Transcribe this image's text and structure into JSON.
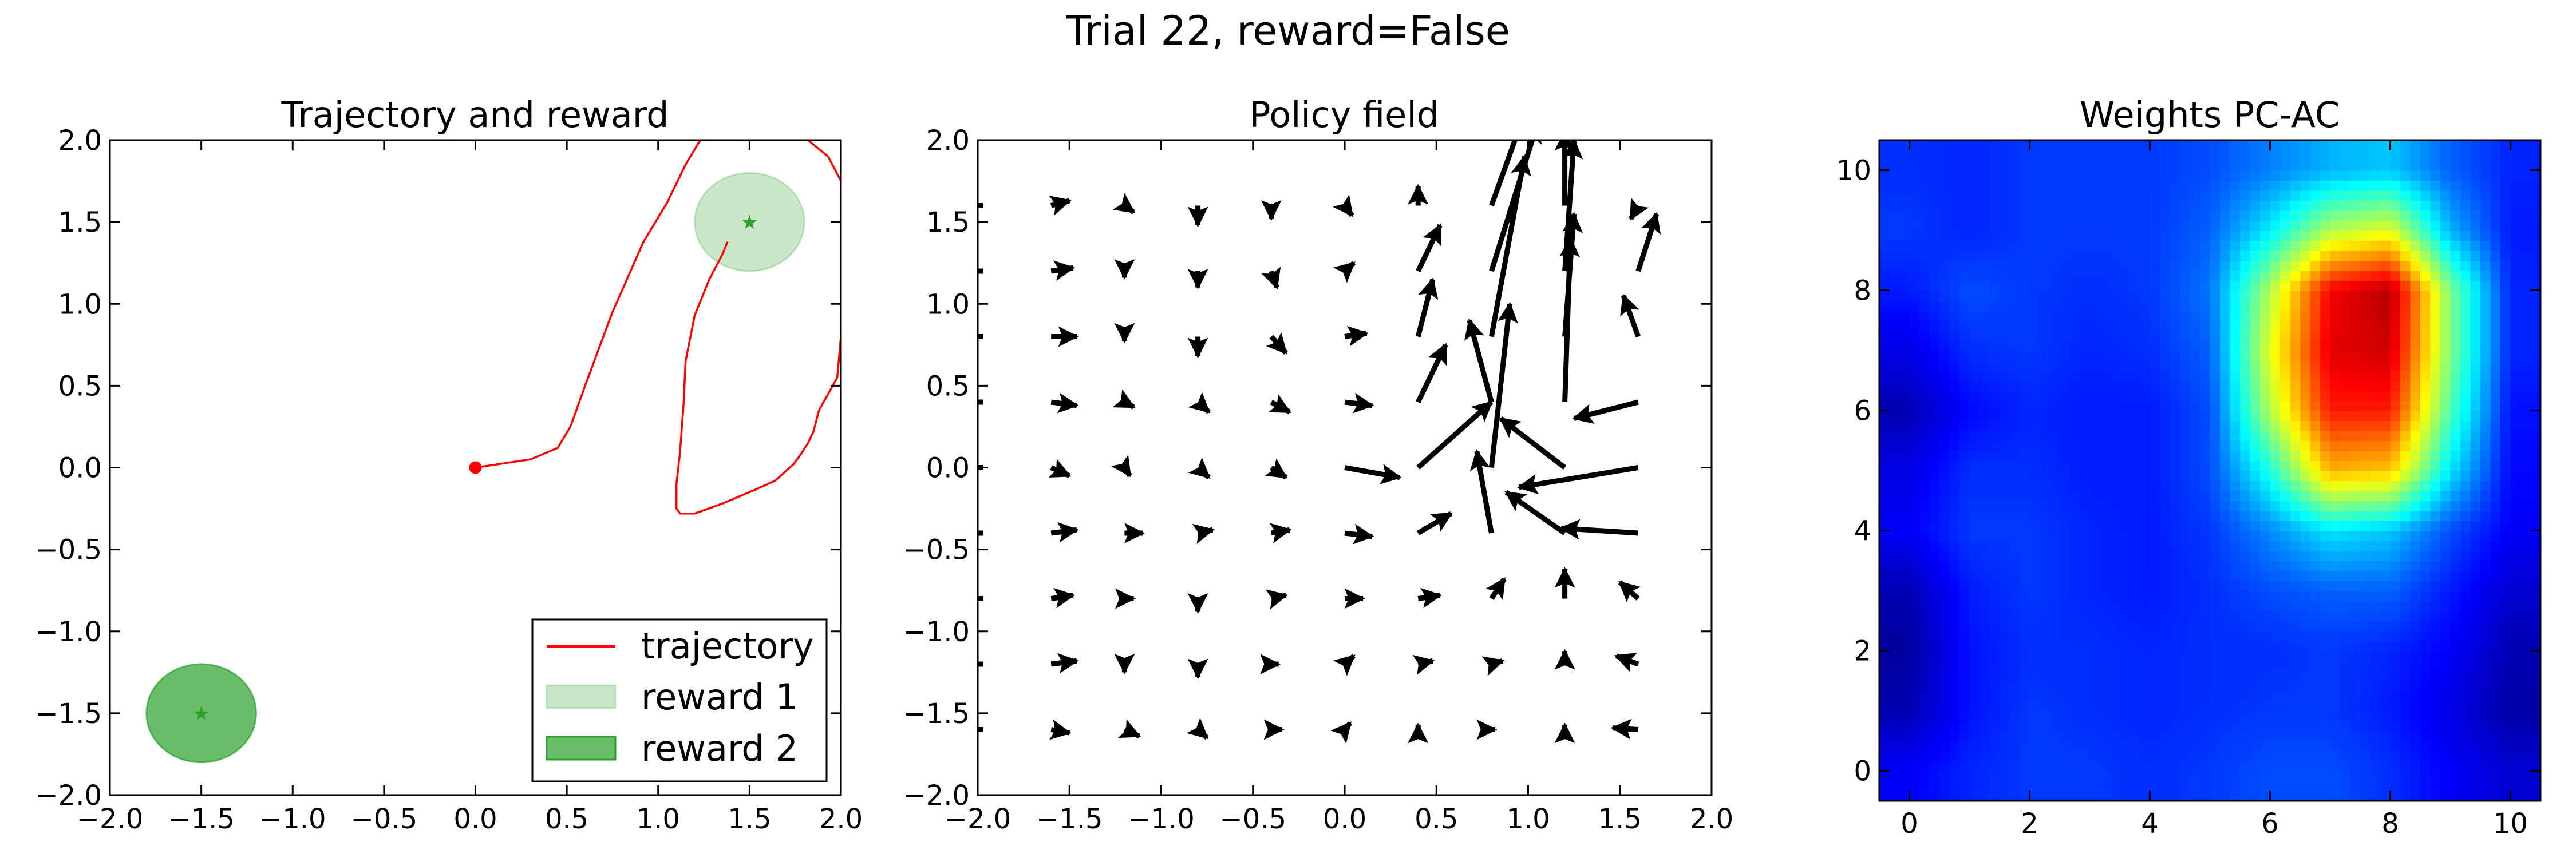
{
  "suptitle": "Trial 22, reward=False",
  "panels": {
    "trajectory": {
      "title": "Trajectory and reward",
      "xticks": [
        "−2.0",
        "−1.5",
        "−1.0",
        "−0.5",
        "0.0",
        "0.5",
        "1.0",
        "1.5",
        "2.0"
      ],
      "yticks": [
        "−2.0",
        "−1.5",
        "−1.0",
        "−0.5",
        "0.0",
        "0.5",
        "1.0",
        "1.5",
        "2.0"
      ],
      "legend": [
        "trajectory",
        "reward 1",
        "reward 2"
      ]
    },
    "policy": {
      "title": "Policy field",
      "xticks": [
        "−2.0",
        "−1.5",
        "−1.0",
        "−0.5",
        "0.0",
        "0.5",
        "1.0",
        "1.5",
        "2.0"
      ],
      "yticks": [
        "−2.0",
        "−1.5",
        "−1.0",
        "−0.5",
        "0.0",
        "0.5",
        "1.0",
        "1.5",
        "2.0"
      ]
    },
    "weights": {
      "title": "Weights PC-AC",
      "xticks": [
        "0",
        "2",
        "4",
        "6",
        "8",
        "10"
      ],
      "yticks": [
        "0",
        "2",
        "4",
        "6",
        "8",
        "10"
      ]
    }
  },
  "colors": {
    "trajectory": "#ff0000",
    "reward1": "#2ca02c",
    "reward2": "#2ca02c",
    "arrows": "#000000"
  },
  "chart_data": [
    {
      "type": "line",
      "title": "Trajectory and reward",
      "xlim": [
        -2,
        2
      ],
      "ylim": [
        -2,
        2
      ],
      "series": [
        {
          "name": "trajectory",
          "x": [
            0.0,
            0.3,
            0.45,
            0.52,
            0.6,
            0.75,
            0.92,
            1.05,
            1.15,
            1.23,
            1.3,
            1.45,
            1.65,
            1.82,
            1.93,
            2.0,
            2.0,
            1.98,
            1.93,
            1.88,
            1.85,
            1.82,
            1.78,
            1.74,
            1.64,
            1.52,
            1.35,
            1.2,
            1.12,
            1.1,
            1.1,
            1.12,
            1.14,
            1.15,
            1.2,
            1.28,
            1.35,
            1.38
          ],
          "y": [
            0.0,
            0.05,
            0.12,
            0.25,
            0.5,
            0.95,
            1.38,
            1.62,
            1.85,
            2.0,
            2.0,
            2.0,
            2.0,
            2.0,
            1.9,
            1.75,
            0.8,
            0.55,
            0.45,
            0.35,
            0.22,
            0.15,
            0.08,
            0.02,
            -0.08,
            -0.14,
            -0.22,
            -0.28,
            -0.28,
            -0.25,
            -0.1,
            0.1,
            0.4,
            0.65,
            0.93,
            1.15,
            1.3,
            1.38
          ]
        }
      ],
      "circles": [
        {
          "name": "reward 1",
          "cx": 1.5,
          "cy": 1.5,
          "r": 0.3,
          "alpha": 0.25
        },
        {
          "name": "reward 2",
          "cx": -1.5,
          "cy": -1.5,
          "r": 0.3,
          "alpha": 0.7
        }
      ],
      "start_point": [
        0.0,
        0.0
      ],
      "legend": [
        "trajectory",
        "reward 1",
        "reward 2"
      ]
    },
    {
      "type": "quiver",
      "title": "Policy field",
      "xlim": [
        -2,
        2
      ],
      "ylim": [
        -2,
        2
      ],
      "arrows": [
        {
          "x": -1.6,
          "y": 1.6,
          "dx": 0.1,
          "dy": 0.03
        },
        {
          "x": -1.2,
          "y": 1.6,
          "dx": 0.05,
          "dy": -0.04
        },
        {
          "x": -0.8,
          "y": 1.6,
          "dx": 0.0,
          "dy": -0.12
        },
        {
          "x": -0.4,
          "y": 1.6,
          "dx": 0.0,
          "dy": -0.08
        },
        {
          "x": 0.0,
          "y": 1.6,
          "dx": 0.04,
          "dy": -0.06
        },
        {
          "x": 0.4,
          "y": 1.6,
          "dx": 0.0,
          "dy": 0.12
        },
        {
          "x": 0.8,
          "y": 1.6,
          "dx": 0.32,
          "dy": 1.0
        },
        {
          "x": 1.2,
          "y": 1.6,
          "dx": 0.0,
          "dy": 0.45
        },
        {
          "x": 1.6,
          "y": 1.6,
          "dx": -0.04,
          "dy": -0.08
        },
        {
          "x": -1.6,
          "y": 1.2,
          "dx": 0.12,
          "dy": 0.02
        },
        {
          "x": -1.2,
          "y": 1.2,
          "dx": 0.0,
          "dy": -0.04
        },
        {
          "x": -0.8,
          "y": 1.2,
          "dx": 0.0,
          "dy": -0.1
        },
        {
          "x": -0.4,
          "y": 1.2,
          "dx": 0.03,
          "dy": -0.1
        },
        {
          "x": 0.0,
          "y": 1.2,
          "dx": 0.05,
          "dy": 0.05
        },
        {
          "x": 0.4,
          "y": 1.2,
          "dx": 0.12,
          "dy": 0.28
        },
        {
          "x": 0.8,
          "y": 1.2,
          "dx": 0.25,
          "dy": 0.9
        },
        {
          "x": 1.2,
          "y": 1.2,
          "dx": 0.05,
          "dy": 0.8
        },
        {
          "x": 1.6,
          "y": 1.2,
          "dx": 0.1,
          "dy": 0.35
        },
        {
          "x": -1.6,
          "y": 0.8,
          "dx": 0.14,
          "dy": 0.0
        },
        {
          "x": -1.2,
          "y": 0.8,
          "dx": 0.0,
          "dy": -0.03
        },
        {
          "x": -0.8,
          "y": 0.8,
          "dx": 0.0,
          "dy": -0.12
        },
        {
          "x": -0.4,
          "y": 0.8,
          "dx": 0.08,
          "dy": -0.1
        },
        {
          "x": 0.0,
          "y": 0.8,
          "dx": 0.12,
          "dy": 0.02
        },
        {
          "x": 0.4,
          "y": 0.8,
          "dx": 0.08,
          "dy": 0.35
        },
        {
          "x": 0.8,
          "y": 0.8,
          "dx": 0.18,
          "dy": 1.1
        },
        {
          "x": 1.2,
          "y": 0.8,
          "dx": 0.05,
          "dy": 0.75
        },
        {
          "x": 1.6,
          "y": 0.8,
          "dx": -0.08,
          "dy": 0.25
        },
        {
          "x": -1.6,
          "y": 0.4,
          "dx": 0.14,
          "dy": -0.02
        },
        {
          "x": -1.2,
          "y": 0.4,
          "dx": 0.05,
          "dy": -0.03
        },
        {
          "x": -0.8,
          "y": 0.4,
          "dx": 0.06,
          "dy": -0.06
        },
        {
          "x": -0.4,
          "y": 0.4,
          "dx": 0.1,
          "dy": -0.06
        },
        {
          "x": 0.0,
          "y": 0.4,
          "dx": 0.15,
          "dy": -0.02
        },
        {
          "x": 0.4,
          "y": 0.4,
          "dx": 0.15,
          "dy": 0.35
        },
        {
          "x": 0.8,
          "y": 0.4,
          "dx": -0.12,
          "dy": 0.5
        },
        {
          "x": 1.2,
          "y": 0.4,
          "dx": 0.03,
          "dy": 1.0
        },
        {
          "x": 1.6,
          "y": 0.4,
          "dx": -0.35,
          "dy": -0.1
        },
        {
          "x": -1.6,
          "y": 0.0,
          "dx": 0.1,
          "dy": -0.05
        },
        {
          "x": -1.2,
          "y": 0.0,
          "dx": 0.03,
          "dy": -0.05
        },
        {
          "x": -0.8,
          "y": 0.0,
          "dx": 0.06,
          "dy": -0.06
        },
        {
          "x": -0.4,
          "y": 0.0,
          "dx": 0.08,
          "dy": -0.06
        },
        {
          "x": 0.0,
          "y": 0.0,
          "dx": 0.3,
          "dy": -0.06
        },
        {
          "x": 0.4,
          "y": 0.0,
          "dx": 0.4,
          "dy": 0.4
        },
        {
          "x": 0.8,
          "y": 0.0,
          "dx": 0.1,
          "dy": 1.0
        },
        {
          "x": 1.2,
          "y": 0.0,
          "dx": -0.35,
          "dy": 0.3
        },
        {
          "x": 1.6,
          "y": 0.0,
          "dx": -0.65,
          "dy": -0.12
        },
        {
          "x": -1.6,
          "y": -0.4,
          "dx": 0.14,
          "dy": 0.02
        },
        {
          "x": -1.2,
          "y": -0.4,
          "dx": 0.1,
          "dy": 0.0
        },
        {
          "x": -0.8,
          "y": -0.4,
          "dx": 0.08,
          "dy": 0.02
        },
        {
          "x": -0.4,
          "y": -0.4,
          "dx": 0.1,
          "dy": 0.02
        },
        {
          "x": 0.0,
          "y": -0.4,
          "dx": 0.15,
          "dy": -0.02
        },
        {
          "x": 0.4,
          "y": -0.4,
          "dx": 0.18,
          "dy": 0.12
        },
        {
          "x": 0.8,
          "y": -0.4,
          "dx": -0.08,
          "dy": 0.5
        },
        {
          "x": 1.2,
          "y": -0.4,
          "dx": -0.32,
          "dy": 0.25
        },
        {
          "x": 1.6,
          "y": -0.4,
          "dx": -0.42,
          "dy": 0.03
        },
        {
          "x": -1.6,
          "y": -0.8,
          "dx": 0.12,
          "dy": 0.02
        },
        {
          "x": -1.2,
          "y": -0.8,
          "dx": 0.05,
          "dy": 0.0
        },
        {
          "x": -0.8,
          "y": -0.8,
          "dx": 0.0,
          "dy": -0.08
        },
        {
          "x": -0.4,
          "y": -0.8,
          "dx": 0.08,
          "dy": 0.02
        },
        {
          "x": 0.0,
          "y": -0.8,
          "dx": 0.1,
          "dy": 0.0
        },
        {
          "x": 0.4,
          "y": -0.8,
          "dx": 0.12,
          "dy": 0.02
        },
        {
          "x": 0.8,
          "y": -0.8,
          "dx": 0.07,
          "dy": 0.12
        },
        {
          "x": 1.2,
          "y": -0.8,
          "dx": 0.0,
          "dy": 0.18
        },
        {
          "x": 1.6,
          "y": -0.8,
          "dx": -0.1,
          "dy": 0.1
        },
        {
          "x": -1.6,
          "y": -1.2,
          "dx": 0.14,
          "dy": 0.02
        },
        {
          "x": -1.2,
          "y": -1.2,
          "dx": 0.0,
          "dy": -0.05
        },
        {
          "x": -0.8,
          "y": -1.2,
          "dx": 0.0,
          "dy": -0.08
        },
        {
          "x": -0.4,
          "y": -1.2,
          "dx": 0.04,
          "dy": 0.0
        },
        {
          "x": 0.0,
          "y": -1.2,
          "dx": 0.05,
          "dy": 0.05
        },
        {
          "x": 0.4,
          "y": -1.2,
          "dx": 0.08,
          "dy": 0.02
        },
        {
          "x": 0.8,
          "y": -1.2,
          "dx": 0.06,
          "dy": 0.02
        },
        {
          "x": 1.2,
          "y": -1.2,
          "dx": 0.0,
          "dy": 0.08
        },
        {
          "x": 1.6,
          "y": -1.2,
          "dx": -0.12,
          "dy": 0.05
        },
        {
          "x": -1.6,
          "y": -1.6,
          "dx": 0.1,
          "dy": -0.02
        },
        {
          "x": -1.2,
          "y": -1.6,
          "dx": 0.08,
          "dy": -0.04
        },
        {
          "x": -0.8,
          "y": -1.6,
          "dx": 0.05,
          "dy": -0.05
        },
        {
          "x": -0.4,
          "y": -1.6,
          "dx": 0.06,
          "dy": 0.0
        },
        {
          "x": 0.0,
          "y": -1.6,
          "dx": 0.03,
          "dy": 0.04
        },
        {
          "x": 0.4,
          "y": -1.6,
          "dx": 0.0,
          "dy": 0.03
        },
        {
          "x": 0.8,
          "y": -1.6,
          "dx": 0.02,
          "dy": 0.0
        },
        {
          "x": 1.2,
          "y": -1.6,
          "dx": 0.0,
          "dy": 0.03
        },
        {
          "x": 1.6,
          "y": -1.6,
          "dx": -0.14,
          "dy": 0.01
        }
      ]
    },
    {
      "type": "heatmap",
      "title": "Weights PC-AC",
      "xlim": [
        -0.5,
        10.5
      ],
      "ylim": [
        -0.5,
        10.5
      ],
      "colormap": "jet",
      "rows_from_y0": [
        [
          0.12,
          0.16,
          0.18,
          0.18,
          0.17,
          0.18,
          0.2,
          0.2,
          0.17,
          0.12,
          0.08
        ],
        [
          0.05,
          0.14,
          0.18,
          0.17,
          0.16,
          0.17,
          0.18,
          0.18,
          0.15,
          0.1,
          0.04
        ],
        [
          0.03,
          0.14,
          0.17,
          0.17,
          0.16,
          0.17,
          0.17,
          0.18,
          0.16,
          0.12,
          0.05
        ],
        [
          0.05,
          0.15,
          0.18,
          0.16,
          0.15,
          0.17,
          0.2,
          0.22,
          0.22,
          0.15,
          0.08
        ],
        [
          0.12,
          0.18,
          0.18,
          0.16,
          0.15,
          0.18,
          0.26,
          0.35,
          0.32,
          0.2,
          0.12
        ],
        [
          0.1,
          0.17,
          0.17,
          0.15,
          0.15,
          0.2,
          0.4,
          0.7,
          0.68,
          0.35,
          0.13
        ],
        [
          0.05,
          0.13,
          0.16,
          0.15,
          0.15,
          0.2,
          0.55,
          0.85,
          0.85,
          0.45,
          0.14
        ],
        [
          0.1,
          0.17,
          0.18,
          0.16,
          0.17,
          0.22,
          0.6,
          0.9,
          0.92,
          0.5,
          0.16
        ],
        [
          0.15,
          0.2,
          0.18,
          0.17,
          0.18,
          0.24,
          0.55,
          0.88,
          0.95,
          0.5,
          0.16
        ],
        [
          0.18,
          0.16,
          0.18,
          0.18,
          0.18,
          0.22,
          0.36,
          0.55,
          0.6,
          0.3,
          0.15
        ],
        [
          0.17,
          0.16,
          0.18,
          0.18,
          0.18,
          0.2,
          0.25,
          0.3,
          0.32,
          0.22,
          0.16
        ]
      ]
    }
  ]
}
